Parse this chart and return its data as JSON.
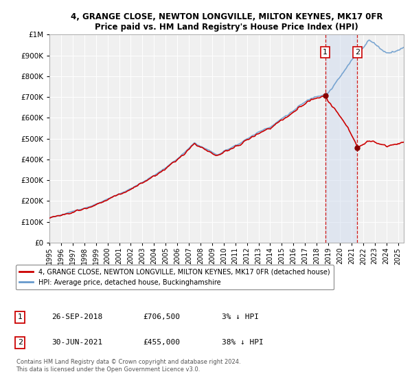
{
  "title1": "4, GRANGE CLOSE, NEWTON LONGVILLE, MILTON KEYNES, MK17 0FR",
  "title2": "Price paid vs. HM Land Registry's House Price Index (HPI)",
  "ylabel_ticks": [
    "£0",
    "£100K",
    "£200K",
    "£300K",
    "£400K",
    "£500K",
    "£600K",
    "£700K",
    "£800K",
    "£900K",
    "£1M"
  ],
  "ytick_values": [
    0,
    100000,
    200000,
    300000,
    400000,
    500000,
    600000,
    700000,
    800000,
    900000,
    1000000
  ],
  "xlim_start": 1995.0,
  "xlim_end": 2025.5,
  "ylim_bottom": 0,
  "ylim_top": 1000000,
  "hpi_color": "#6699cc",
  "price_color": "#cc0000",
  "marker1_year": 2018.74,
  "marker1_price": 706500,
  "marker2_year": 2021.5,
  "marker2_price": 455000,
  "legend_label1": "4, GRANGE CLOSE, NEWTON LONGVILLE, MILTON KEYNES, MK17 0FR (detached house)",
  "legend_label2": "HPI: Average price, detached house, Buckinghamshire",
  "table_row1_num": "1",
  "table_row1_date": "26-SEP-2018",
  "table_row1_price": "£706,500",
  "table_row1_hpi": "3% ↓ HPI",
  "table_row2_num": "2",
  "table_row2_date": "30-JUN-2021",
  "table_row2_price": "£455,000",
  "table_row2_hpi": "38% ↓ HPI",
  "footnote": "Contains HM Land Registry data © Crown copyright and database right 2024.\nThis data is licensed under the Open Government Licence v3.0.",
  "background_color": "#ffffff",
  "plot_bg_color": "#f0f0f0",
  "grid_color": "#ffffff",
  "span_color": "#ccd9ee"
}
